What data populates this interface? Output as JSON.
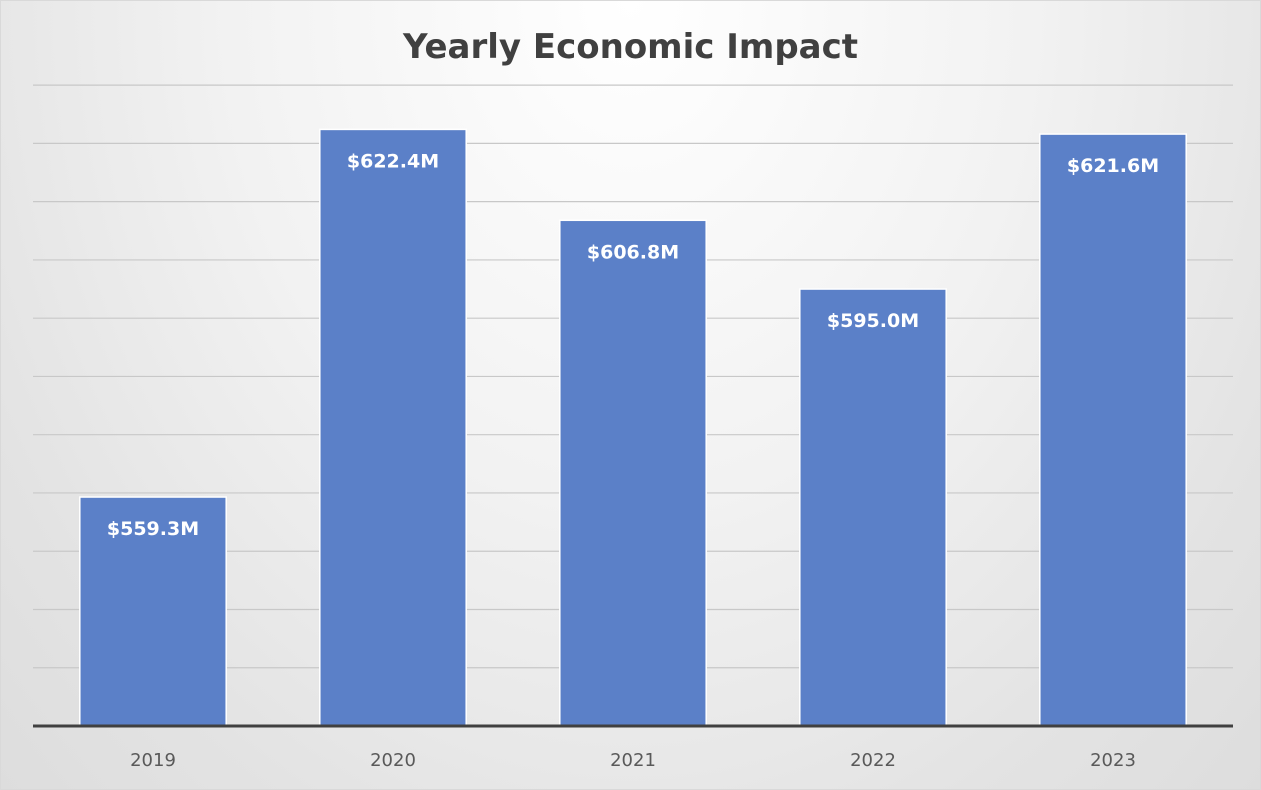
{
  "chart_data": {
    "type": "bar",
    "title": "Yearly Economic Impact",
    "xlabel": "",
    "ylabel": "",
    "categories": [
      "2019",
      "2020",
      "2021",
      "2022",
      "2023"
    ],
    "values": [
      559.3,
      622.4,
      606.8,
      595.0,
      621.6
    ],
    "data_labels": [
      "$559.3M",
      "$622.4M",
      "$606.8M",
      "$595.0M",
      "$621.6M"
    ],
    "units": "$M",
    "ylim": [
      520,
      635
    ],
    "grid": true,
    "y_tick_labels_shown": false,
    "legend": "none",
    "colors": {
      "bar": "#5b80c8",
      "bar_edge": "#ffffff",
      "data_label": "#ffffff",
      "axis_line": "#404040",
      "gridline": "#c8c8c8",
      "tick_label": "#595959",
      "title": "#404040"
    }
  }
}
